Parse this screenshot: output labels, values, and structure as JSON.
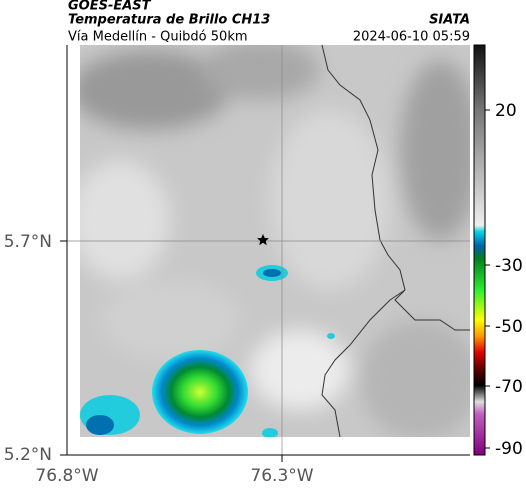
{
  "header": {
    "title": "GOES-EAST",
    "subtitle": "Temperatura de Brillo CH13",
    "source": "SIATA",
    "route": "Vía Medellín - Quibdó 50km",
    "timestamp": "2024-06-10 05:59"
  },
  "map": {
    "lat_labels": [
      "5.7°N",
      "5.2°N"
    ],
    "lon_labels": [
      "76.8°W",
      "76.3°W"
    ]
  },
  "colorbar": {
    "labels": [
      "20",
      "-30",
      "-50",
      "-70",
      "-90"
    ]
  }
}
